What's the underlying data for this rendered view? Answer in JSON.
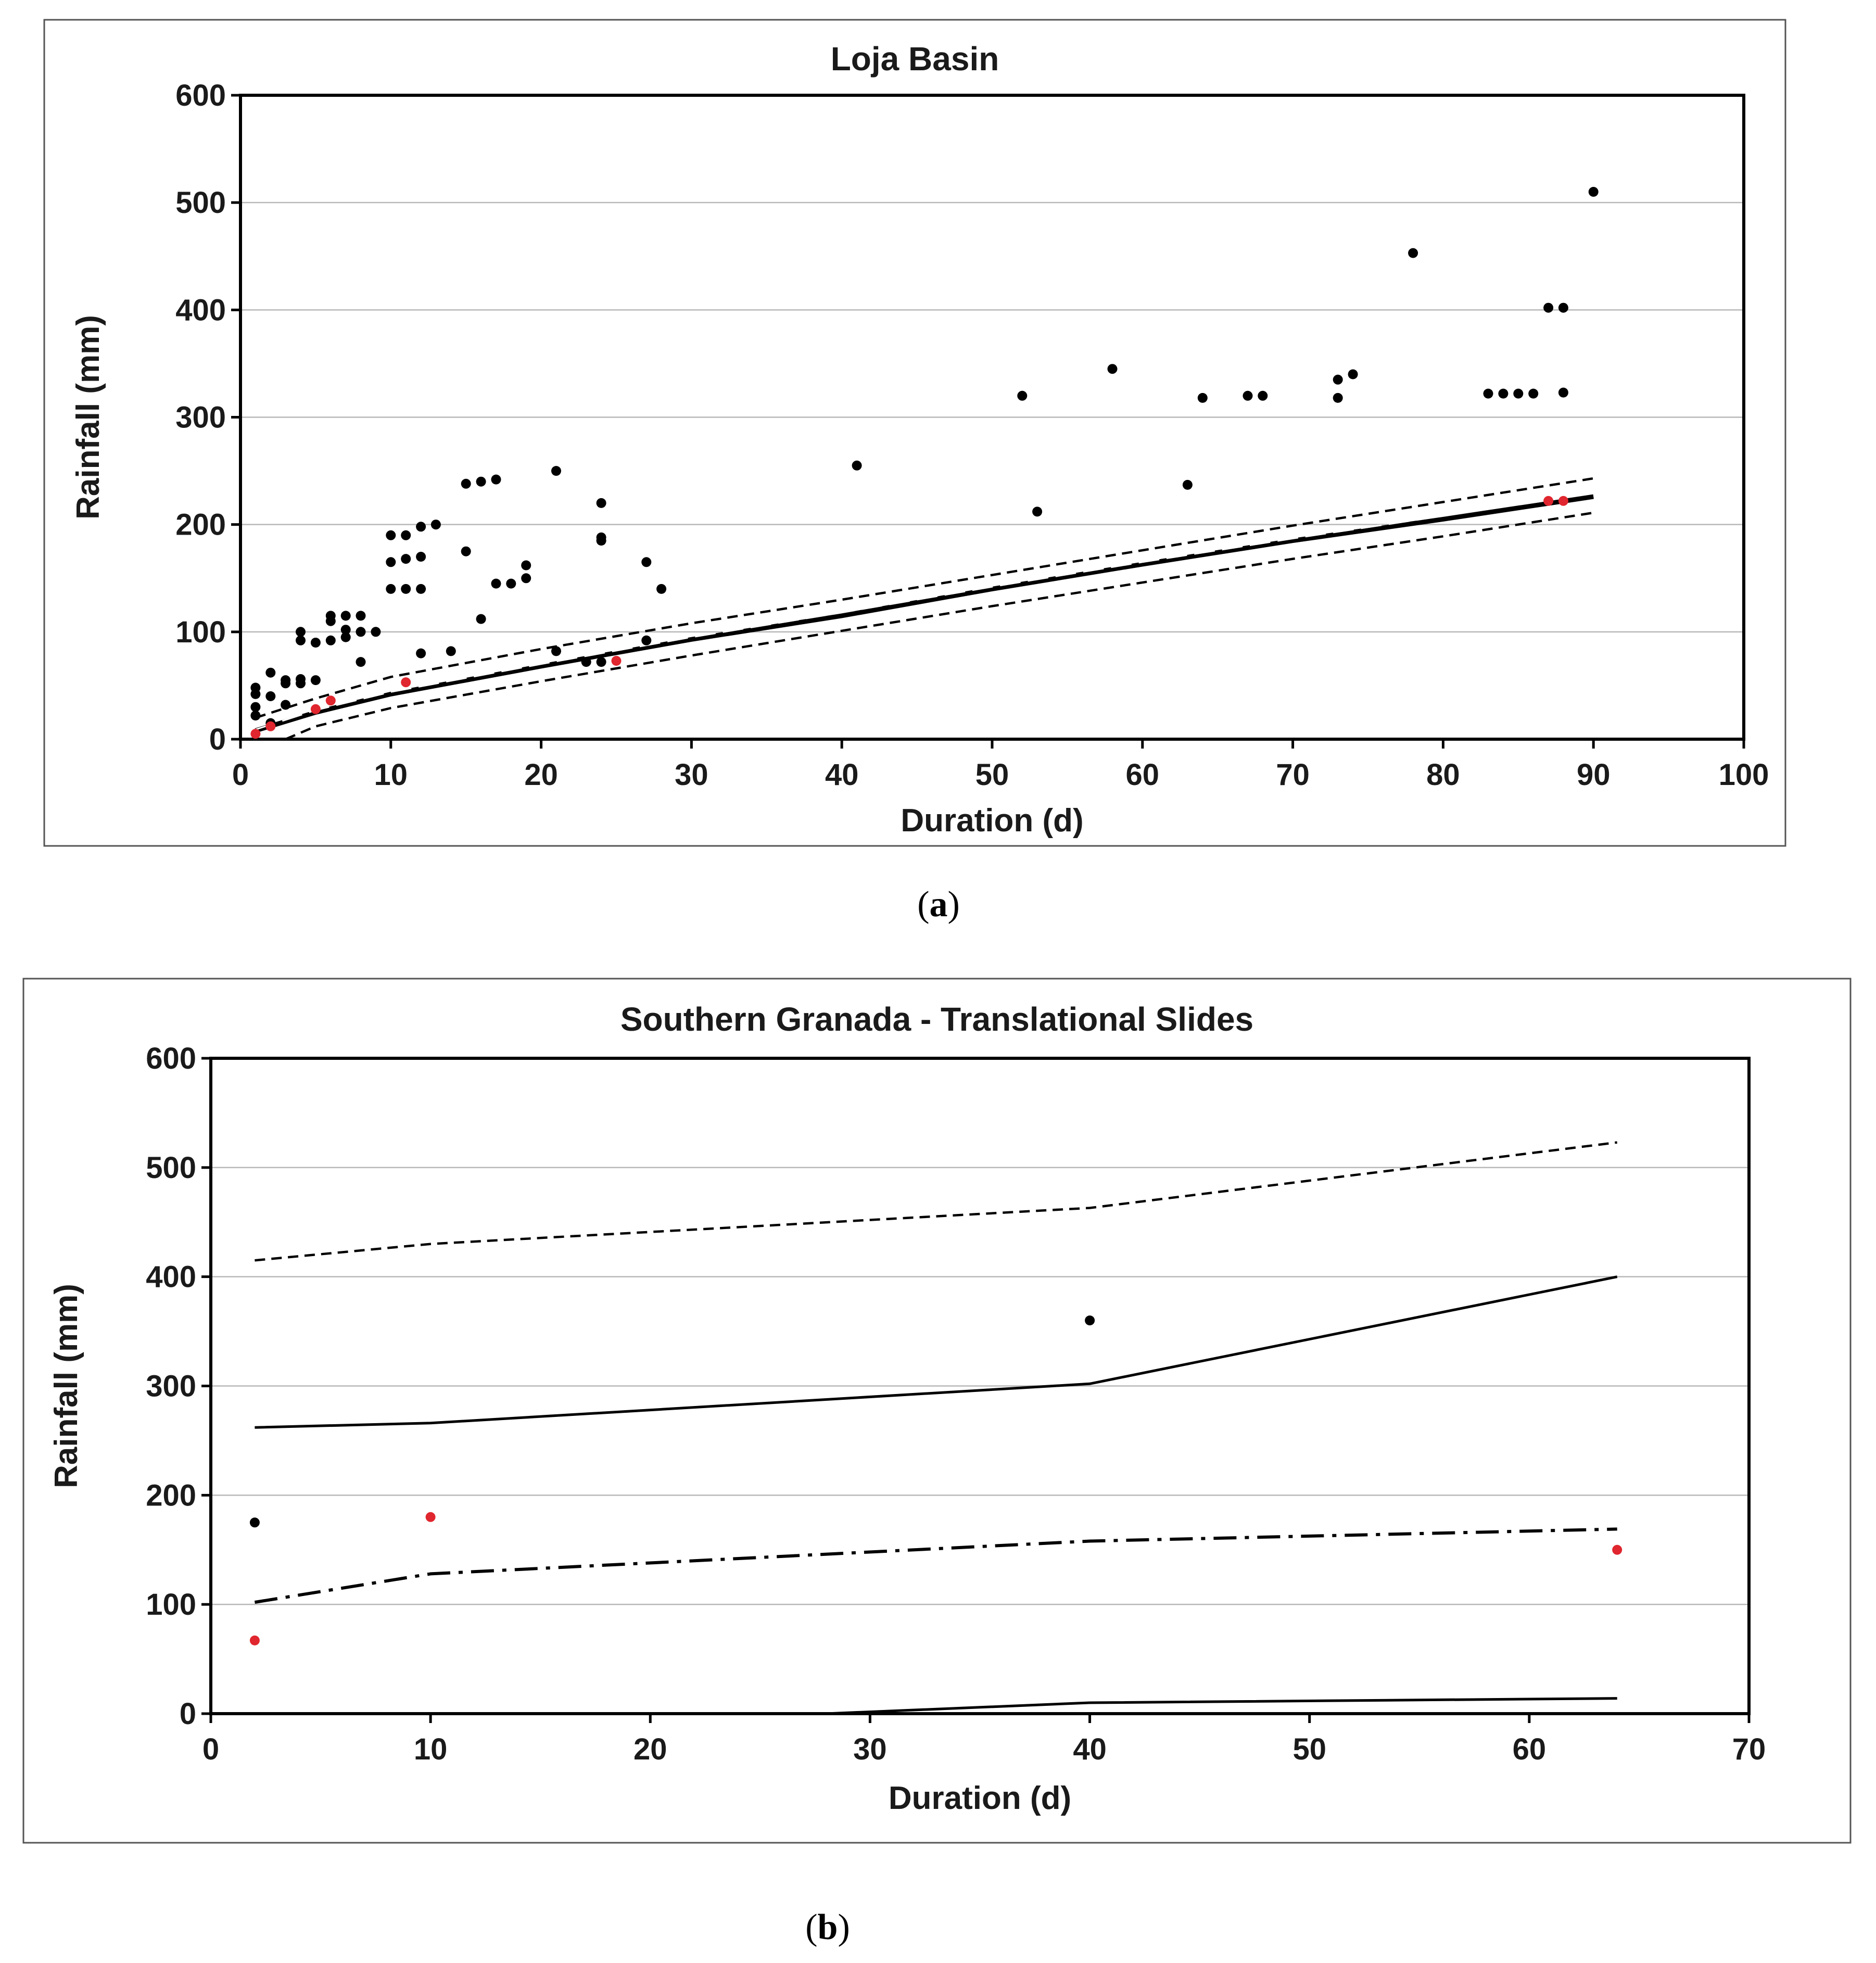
{
  "chart_data": [
    {
      "type": "scatter",
      "title": "Loja Basin",
      "xlabel": "Duration (d)",
      "ylabel": "Rainfall (mm)",
      "xlim": [
        0,
        100
      ],
      "ylim": [
        0,
        600
      ],
      "xticks": [
        0,
        10,
        20,
        30,
        40,
        50,
        60,
        70,
        80,
        90,
        100
      ],
      "yticks": [
        0,
        100,
        200,
        300,
        400,
        500,
        600
      ],
      "grid": "horizontal",
      "caption_letter": "a",
      "series": [
        {
          "name": "events",
          "kind": "points",
          "color": "#000000",
          "points": [
            [
              1,
              48
            ],
            [
              1,
              42
            ],
            [
              1,
              30
            ],
            [
              1,
              22
            ],
            [
              2,
              62
            ],
            [
              2,
              40
            ],
            [
              2,
              15
            ],
            [
              3,
              55
            ],
            [
              3,
              52
            ],
            [
              3,
              32
            ],
            [
              4,
              100
            ],
            [
              4,
              92
            ],
            [
              4,
              56
            ],
            [
              4,
              52
            ],
            [
              5,
              90
            ],
            [
              5,
              55
            ],
            [
              6,
              115
            ],
            [
              6,
              110
            ],
            [
              6,
              92
            ],
            [
              7,
              115
            ],
            [
              7,
              102
            ],
            [
              7,
              95
            ],
            [
              8,
              115
            ],
            [
              8,
              100
            ],
            [
              8,
              72
            ],
            [
              9,
              100
            ],
            [
              10,
              190
            ],
            [
              10,
              165
            ],
            [
              10,
              140
            ],
            [
              11,
              190
            ],
            [
              11,
              168
            ],
            [
              11,
              140
            ],
            [
              12,
              198
            ],
            [
              12,
              170
            ],
            [
              12,
              140
            ],
            [
              12,
              80
            ],
            [
              13,
              200
            ],
            [
              14,
              82
            ],
            [
              15,
              238
            ],
            [
              15,
              175
            ],
            [
              16,
              240
            ],
            [
              16,
              112
            ],
            [
              17,
              242
            ],
            [
              17,
              145
            ],
            [
              18,
              145
            ],
            [
              19,
              162
            ],
            [
              19,
              150
            ],
            [
              21,
              250
            ],
            [
              21,
              82
            ],
            [
              23,
              72
            ],
            [
              24,
              220
            ],
            [
              24,
              188
            ],
            [
              24,
              185
            ],
            [
              24,
              72
            ],
            [
              27,
              165
            ],
            [
              27,
              92
            ],
            [
              28,
              140
            ],
            [
              41,
              255
            ],
            [
              52,
              320
            ],
            [
              53,
              212
            ],
            [
              58,
              345
            ],
            [
              63,
              237
            ],
            [
              64,
              318
            ],
            [
              67,
              320
            ],
            [
              68,
              320
            ],
            [
              73,
              335
            ],
            [
              73,
              318
            ],
            [
              74,
              340
            ],
            [
              78,
              453
            ],
            [
              83,
              322
            ],
            [
              84,
              322
            ],
            [
              85,
              322
            ],
            [
              86,
              322
            ],
            [
              87,
              402
            ],
            [
              88,
              402
            ],
            [
              88,
              323
            ],
            [
              90,
              510
            ]
          ]
        },
        {
          "name": "highlighted events",
          "kind": "points",
          "color": "#e0262e",
          "points": [
            [
              1,
              5
            ],
            [
              2,
              12
            ],
            [
              5,
              28
            ],
            [
              6,
              36
            ],
            [
              11,
              53
            ],
            [
              25,
              73
            ],
            [
              87,
              222
            ],
            [
              88,
              222
            ]
          ]
        },
        {
          "name": "threshold",
          "kind": "line",
          "style": "solid-thick",
          "color": "#000000",
          "points": [
            [
              1,
              8
            ],
            [
              5,
              25
            ],
            [
              10,
              42
            ],
            [
              20,
              68
            ],
            [
              30,
              93
            ],
            [
              40,
              115
            ],
            [
              50,
              140
            ],
            [
              60,
              163
            ],
            [
              70,
              185
            ],
            [
              80,
              205
            ],
            [
              90,
              226
            ]
          ]
        },
        {
          "name": "threshold fit",
          "kind": "line",
          "style": "long-dash",
          "color": "#000000",
          "points": [
            [
              1,
              9
            ],
            [
              5,
              27
            ],
            [
              10,
              44
            ],
            [
              20,
              70
            ],
            [
              30,
              95
            ],
            [
              40,
              118
            ],
            [
              50,
              142
            ],
            [
              60,
              165
            ],
            [
              70,
              187
            ],
            [
              80,
              208
            ],
            [
              90,
              230
            ]
          ]
        },
        {
          "name": "upper bound",
          "kind": "line",
          "style": "dashed",
          "color": "#000000",
          "points": [
            [
              1,
              20
            ],
            [
              5,
              38
            ],
            [
              10,
              58
            ],
            [
              20,
              84
            ],
            [
              30,
              108
            ],
            [
              40,
              130
            ],
            [
              50,
              153
            ],
            [
              60,
              176
            ],
            [
              70,
              199
            ],
            [
              80,
              221
            ],
            [
              90,
              243
            ]
          ]
        },
        {
          "name": "lower bound",
          "kind": "line",
          "style": "dashed",
          "color": "#000000",
          "points": [
            [
              3,
              0
            ],
            [
              5,
              12
            ],
            [
              10,
              29
            ],
            [
              20,
              54
            ],
            [
              30,
              78
            ],
            [
              40,
              101
            ],
            [
              50,
              124
            ],
            [
              60,
              146
            ],
            [
              70,
              168
            ],
            [
              80,
              189
            ],
            [
              90,
              211
            ]
          ]
        }
      ]
    },
    {
      "type": "scatter",
      "title": "Southern Granada - Translational Slides",
      "xlabel": "Duration (d)",
      "ylabel": "Rainfall (mm)",
      "xlim": [
        0,
        70
      ],
      "ylim": [
        0,
        600
      ],
      "xticks": [
        0,
        10,
        20,
        30,
        40,
        50,
        60,
        70
      ],
      "yticks": [
        0,
        100,
        200,
        300,
        400,
        500,
        600
      ],
      "grid": "horizontal",
      "caption_letter": "b",
      "series": [
        {
          "name": "upper dashed",
          "kind": "line",
          "style": "dashed",
          "color": "#000000",
          "points": [
            [
              2,
              415
            ],
            [
              10,
              430
            ],
            [
              40,
              463
            ],
            [
              64,
              523
            ]
          ]
        },
        {
          "name": "upper solid",
          "kind": "line",
          "style": "solid",
          "color": "#000000",
          "points": [
            [
              2,
              262
            ],
            [
              10,
              266
            ],
            [
              40,
              302
            ],
            [
              64,
              400
            ]
          ]
        },
        {
          "name": "dash-dot threshold",
          "kind": "line",
          "style": "dash-dot",
          "color": "#000000",
          "points": [
            [
              2,
              102
            ],
            [
              10,
              128
            ],
            [
              40,
              158
            ],
            [
              64,
              169
            ]
          ]
        },
        {
          "name": "lower solid",
          "kind": "line",
          "style": "solid",
          "color": "#000000",
          "points": [
            [
              2,
              0
            ],
            [
              28,
              0
            ],
            [
              40,
              10
            ],
            [
              64,
              14
            ]
          ]
        },
        {
          "name": "events",
          "kind": "points",
          "color": "#000000",
          "points": [
            [
              2,
              175
            ],
            [
              40,
              360
            ]
          ]
        },
        {
          "name": "highlighted events",
          "kind": "points",
          "color": "#e0262e",
          "points": [
            [
              2,
              67
            ],
            [
              10,
              180
            ],
            [
              64,
              150
            ]
          ]
        }
      ]
    }
  ]
}
